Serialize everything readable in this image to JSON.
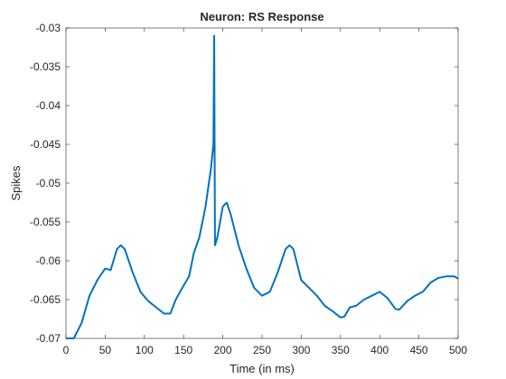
{
  "chart_data": {
    "type": "line",
    "title": "Neuron: RS Response",
    "xlabel": "Time (in ms)",
    "ylabel": "Spikes",
    "x": [
      0,
      10,
      20,
      30,
      40,
      50,
      57,
      65,
      70,
      75,
      85,
      95,
      105,
      115,
      125,
      133,
      140,
      150,
      157,
      163,
      170,
      178,
      185,
      188,
      189,
      190,
      193,
      200,
      205,
      210,
      220,
      230,
      240,
      250,
      260,
      270,
      280,
      285,
      290,
      300,
      310,
      320,
      330,
      340,
      350,
      355,
      362,
      370,
      380,
      390,
      400,
      410,
      420,
      425,
      435,
      445,
      455,
      465,
      475,
      485,
      495,
      500
    ],
    "series": [
      {
        "name": "RS",
        "color": "#0072bd",
        "values": [
          -0.07,
          -0.07,
          -0.068,
          -0.0645,
          -0.0625,
          -0.061,
          -0.0612,
          -0.0585,
          -0.058,
          -0.0585,
          -0.0615,
          -0.064,
          -0.0652,
          -0.066,
          -0.0668,
          -0.0668,
          -0.065,
          -0.0632,
          -0.062,
          -0.059,
          -0.057,
          -0.053,
          -0.048,
          -0.045,
          -0.031,
          -0.058,
          -0.057,
          -0.053,
          -0.0525,
          -0.054,
          -0.058,
          -0.061,
          -0.0635,
          -0.0645,
          -0.064,
          -0.0615,
          -0.0585,
          -0.058,
          -0.0585,
          -0.0625,
          -0.0635,
          -0.0645,
          -0.0658,
          -0.0665,
          -0.0673,
          -0.0672,
          -0.066,
          -0.0658,
          -0.065,
          -0.0645,
          -0.064,
          -0.0648,
          -0.0662,
          -0.0663,
          -0.0652,
          -0.0645,
          -0.064,
          -0.0628,
          -0.0622,
          -0.062,
          -0.062,
          -0.0623
        ]
      }
    ],
    "xlim": [
      0,
      500
    ],
    "xticks": [
      0,
      50,
      100,
      150,
      200,
      250,
      300,
      350,
      400,
      450,
      500
    ],
    "ylim": [
      -0.07,
      -0.03
    ],
    "yticks": [
      -0.07,
      -0.065,
      -0.06,
      -0.055,
      -0.05,
      -0.045,
      -0.04,
      -0.035,
      -0.03
    ]
  }
}
